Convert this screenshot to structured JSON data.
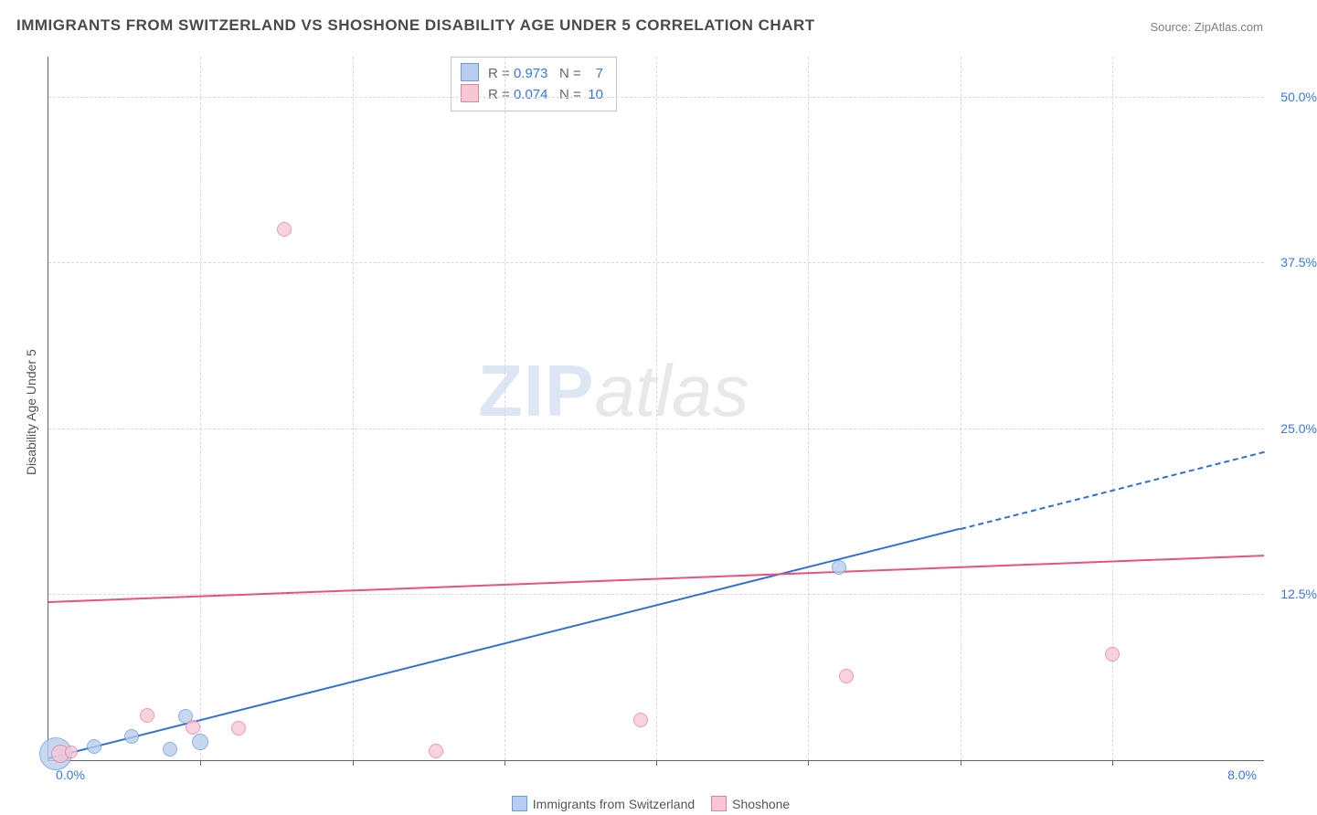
{
  "title": "IMMIGRANTS FROM SWITZERLAND VS SHOSHONE DISABILITY AGE UNDER 5 CORRELATION CHART",
  "source_label": "Source: ",
  "source_name": "ZipAtlas.com",
  "y_axis_title": "Disability Age Under 5",
  "watermark_a": "ZIP",
  "watermark_b": "atlas",
  "chart": {
    "type": "scatter",
    "x_min": 0.0,
    "x_max": 8.0,
    "y_min": 0.0,
    "y_max": 53.0,
    "grid_color": "#d8d8d8",
    "axis_color": "#666666",
    "tick_label_color": "#3a78d6",
    "y_ticks": [
      12.5,
      25.0,
      37.5,
      50.0
    ],
    "y_tick_labels": [
      "12.5%",
      "25.0%",
      "37.5%",
      "50.0%"
    ],
    "x_ticks_minor": [
      1.0,
      2.0,
      3.0,
      4.0,
      5.0,
      6.0,
      7.0
    ],
    "x_tick_left_label": "0.0%",
    "x_tick_right_label": "8.0%",
    "series": [
      {
        "id": "immigrants",
        "label": "Immigrants from Switzerland",
        "fill": "#b8cdef",
        "stroke": "#6a9be0",
        "trend_color": "#2f6fd0",
        "R": "0.973",
        "N": "7",
        "points": [
          {
            "x": 0.05,
            "y": 0.5,
            "r": 18
          },
          {
            "x": 0.3,
            "y": 1.0,
            "r": 8
          },
          {
            "x": 0.55,
            "y": 1.8,
            "r": 8
          },
          {
            "x": 0.8,
            "y": 0.8,
            "r": 8
          },
          {
            "x": 0.9,
            "y": 3.3,
            "r": 8
          },
          {
            "x": 1.0,
            "y": 1.4,
            "r": 9
          },
          {
            "x": 5.2,
            "y": 14.5,
            "r": 8
          }
        ],
        "trend": {
          "x1": 0.0,
          "y1": 0.2,
          "x2": 6.0,
          "y2": 17.5,
          "extend_to_x": 8.0,
          "y_at_extend": 23.3
        }
      },
      {
        "id": "shoshone",
        "label": "Shoshone",
        "fill": "#f6c8d4",
        "stroke": "#e87fa0",
        "trend_color": "#e5537e",
        "R": "0.074",
        "N": "10",
        "points": [
          {
            "x": 0.08,
            "y": 0.5,
            "r": 10
          },
          {
            "x": 0.15,
            "y": 0.6,
            "r": 7
          },
          {
            "x": 0.65,
            "y": 3.4,
            "r": 8
          },
          {
            "x": 0.95,
            "y": 2.5,
            "r": 8
          },
          {
            "x": 1.25,
            "y": 2.4,
            "r": 8
          },
          {
            "x": 1.55,
            "y": 40.0,
            "r": 8
          },
          {
            "x": 2.55,
            "y": 0.7,
            "r": 8
          },
          {
            "x": 3.9,
            "y": 3.0,
            "r": 8
          },
          {
            "x": 5.25,
            "y": 6.3,
            "r": 8
          },
          {
            "x": 7.0,
            "y": 8.0,
            "r": 8
          }
        ],
        "trend": {
          "x1": 0.0,
          "y1": 12.0,
          "x2": 8.0,
          "y2": 15.5
        }
      }
    ]
  },
  "top_legend": {
    "R_label": "R =",
    "N_label": "N ="
  }
}
